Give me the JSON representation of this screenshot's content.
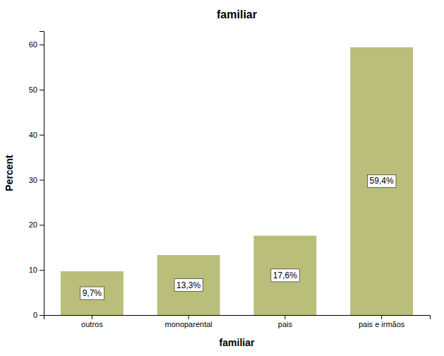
{
  "chart_data": {
    "type": "bar",
    "title": "familiar",
    "xlabel": "familiar",
    "ylabel": "Percent",
    "categories": [
      "outros",
      "monoparental",
      "pais",
      "pais e irmãos"
    ],
    "values": [
      9.7,
      13.3,
      17.6,
      59.4
    ],
    "value_labels": [
      "9,7%",
      "13,3%",
      "17,6%",
      "59,4%"
    ],
    "data_labels": true,
    "color": "#bbbe7a",
    "ylim": [
      0,
      63
    ],
    "yticks": [
      0,
      10,
      20,
      30,
      40,
      50,
      60
    ],
    "grid": false
  }
}
